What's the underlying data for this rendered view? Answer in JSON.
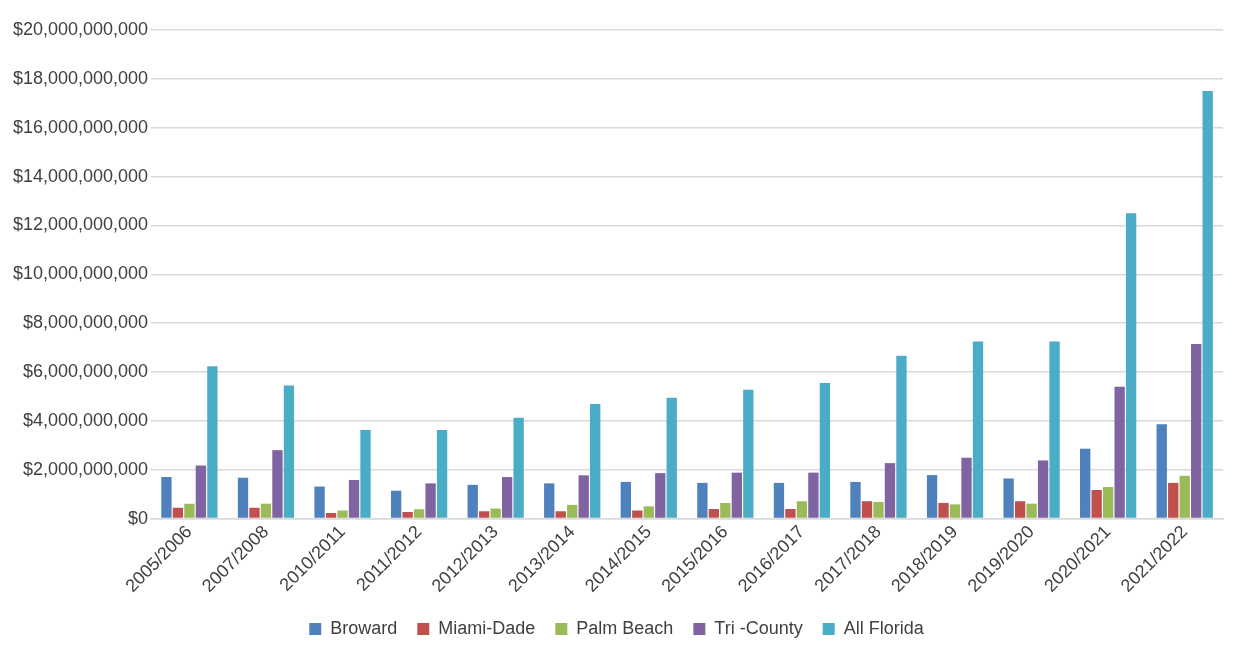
{
  "chart_data": {
    "type": "bar",
    "categories": [
      "2005/2006",
      "2007/2008",
      "2010/2011",
      "2011/2012",
      "2012/2013",
      "2013/2014",
      "2014/2015",
      "2015/2016",
      "2016/2017",
      "2017/2018",
      "2018/2019",
      "2019/2020",
      "2020/2021",
      "2021/2022"
    ],
    "series": [
      {
        "name": "Broward",
        "color": "#4f81bd",
        "values": [
          1700000000,
          1670000000,
          1310000000,
          1140000000,
          1380000000,
          1440000000,
          1500000000,
          1460000000,
          1460000000,
          1500000000,
          1780000000,
          1640000000,
          2860000000,
          3860000000
        ]
      },
      {
        "name": "Miami-Dade",
        "color": "#c0504d",
        "values": [
          440000000,
          440000000,
          230000000,
          270000000,
          300000000,
          300000000,
          330000000,
          390000000,
          390000000,
          710000000,
          640000000,
          710000000,
          1170000000,
          1460000000
        ]
      },
      {
        "name": "Palm Beach",
        "color": "#9bbb59",
        "values": [
          610000000,
          610000000,
          330000000,
          380000000,
          410000000,
          560000000,
          500000000,
          640000000,
          710000000,
          680000000,
          580000000,
          610000000,
          1290000000,
          1750000000
        ]
      },
      {
        "name": "Tri -County",
        "color": "#8064a2",
        "values": [
          2170000000,
          2800000000,
          1580000000,
          1440000000,
          1700000000,
          1770000000,
          1860000000,
          1880000000,
          1880000000,
          2270000000,
          2490000000,
          2380000000,
          5400000000,
          7150000000
        ]
      },
      {
        "name": "All Florida",
        "color": "#4bacc6",
        "values": [
          6230000000,
          5450000000,
          3630000000,
          3630000000,
          4130000000,
          4690000000,
          4950000000,
          5270000000,
          5550000000,
          6660000000,
          7250000000,
          7250000000,
          12500000000,
          17500000000
        ]
      }
    ],
    "ylim": [
      0,
      20000000000
    ],
    "yticks": [
      {
        "value": 0,
        "label": "$0"
      },
      {
        "value": 2000000000,
        "label": "$2,000,000,000"
      },
      {
        "value": 4000000000,
        "label": "$4,000,000,000"
      },
      {
        "value": 6000000000,
        "label": "$6,000,000,000"
      },
      {
        "value": 8000000000,
        "label": "$8,000,000,000"
      },
      {
        "value": 10000000000,
        "label": "$10,000,000,000"
      },
      {
        "value": 12000000000,
        "label": "$12,000,000,000"
      },
      {
        "value": 14000000000,
        "label": "$14,000,000,000"
      },
      {
        "value": 16000000000,
        "label": "$16,000,000,000"
      },
      {
        "value": 18000000000,
        "label": "$18,000,000,000"
      },
      {
        "value": 20000000000,
        "label": "$20,000,000,000"
      }
    ],
    "grid": "y",
    "legend": "bottom"
  }
}
